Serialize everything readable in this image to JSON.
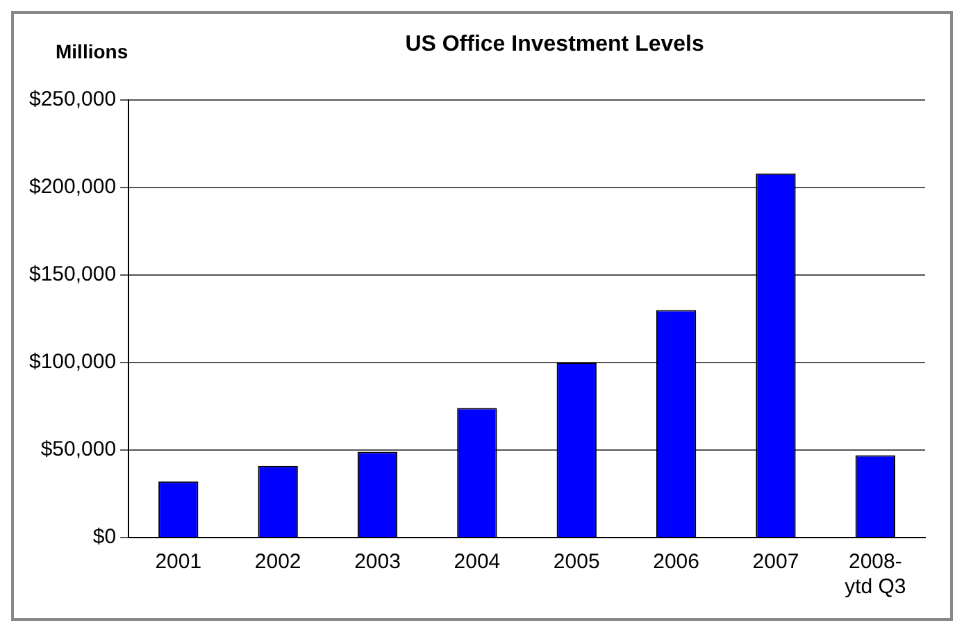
{
  "chart_data": {
    "type": "bar",
    "title": "US Office Investment Levels",
    "ylabel": "Millions",
    "categories": [
      "2001",
      "2002",
      "2003",
      "2004",
      "2005",
      "2006",
      "2007",
      "2008-\nytd Q3"
    ],
    "values": [
      32000,
      41000,
      49000,
      74000,
      100000,
      130000,
      208000,
      47000
    ],
    "color": "#0000ff",
    "ylim": [
      0,
      250000
    ],
    "yticks": [
      {
        "value": 0,
        "label": "$0"
      },
      {
        "value": 50000,
        "label": "$50,000"
      },
      {
        "value": 100000,
        "label": "$100,000"
      },
      {
        "value": 150000,
        "label": "$150,000"
      },
      {
        "value": 200000,
        "label": "$200,000"
      },
      {
        "value": 250000,
        "label": "$250,000"
      }
    ],
    "grid": "y"
  }
}
